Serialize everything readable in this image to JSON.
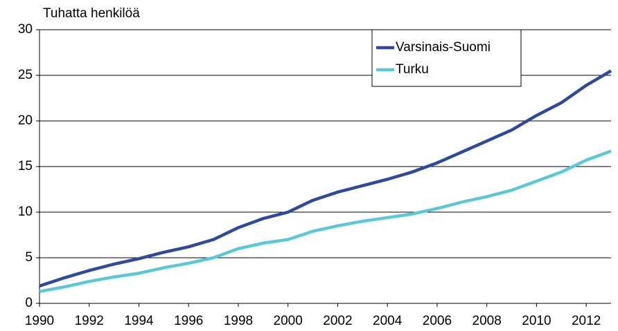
{
  "chart_data": {
    "type": "line",
    "y_axis_label": "Tuhatta henkilöä",
    "x": [
      1990,
      1991,
      1992,
      1993,
      1994,
      1995,
      1996,
      1997,
      1998,
      1999,
      2000,
      2001,
      2002,
      2003,
      2004,
      2005,
      2006,
      2007,
      2008,
      2009,
      2010,
      2011,
      2012,
      2013
    ],
    "series": [
      {
        "name": "Varsinais-Suomi",
        "color": "#2e4a9e",
        "values": [
          1.9,
          2.8,
          3.6,
          4.3,
          4.9,
          5.6,
          6.2,
          7.0,
          8.3,
          9.3,
          10.0,
          11.3,
          12.2,
          12.9,
          13.6,
          14.4,
          15.4,
          16.6,
          17.8,
          19.0,
          20.6,
          22.0,
          23.9,
          25.5
        ]
      },
      {
        "name": "Turku",
        "color": "#5bc8d8",
        "values": [
          1.3,
          1.8,
          2.4,
          2.9,
          3.3,
          3.9,
          4.4,
          5.0,
          6.0,
          6.6,
          7.0,
          7.9,
          8.5,
          9.0,
          9.4,
          9.8,
          10.4,
          11.1,
          11.7,
          12.4,
          13.4,
          14.4,
          15.7,
          16.7
        ]
      }
    ],
    "xlim": [
      1990,
      2013
    ],
    "xticks": [
      1990,
      1992,
      1994,
      1996,
      1998,
      2000,
      2002,
      2004,
      2006,
      2008,
      2010,
      2012
    ],
    "ylim": [
      0,
      30
    ],
    "yticks": [
      0,
      5,
      10,
      15,
      20,
      25,
      30
    ],
    "grid": true,
    "legend": "upper right"
  }
}
